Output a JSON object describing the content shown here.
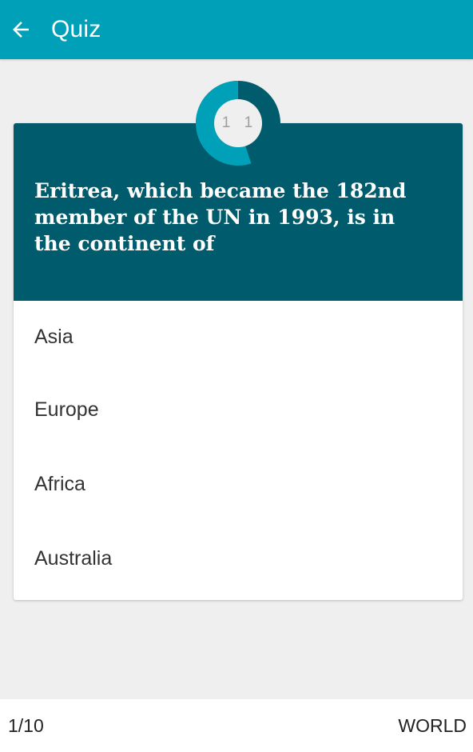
{
  "appbar": {
    "title": "Quiz",
    "back_icon": "arrow-left-icon",
    "color": "#00a0b9"
  },
  "timer": {
    "label": "1 1",
    "fraction_remaining": 0.55,
    "ring_color": "#00a0b9",
    "track_color": "#005c6d"
  },
  "question": {
    "text": "Eritrea, which became the 182nd member of the UN in 1993, is in the continent of",
    "background": "#005c6d"
  },
  "options": [
    "Asia",
    "Europe",
    "Africa",
    "Australia"
  ],
  "footer": {
    "progress": "1/10",
    "category": "WORLD"
  }
}
